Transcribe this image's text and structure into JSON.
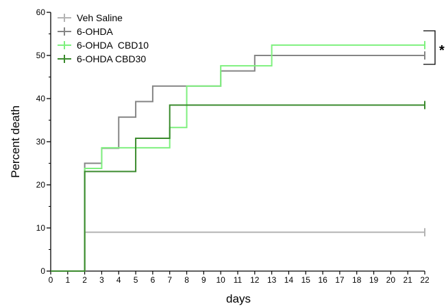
{
  "chart_data": {
    "type": "line",
    "title": "",
    "xlabel": "days",
    "ylabel": "Percent death",
    "xlim": [
      0,
      22
    ],
    "ylim": [
      0,
      60
    ],
    "xticks": [
      0,
      1,
      2,
      3,
      4,
      5,
      6,
      7,
      8,
      9,
      10,
      11,
      12,
      13,
      14,
      15,
      16,
      17,
      18,
      19,
      20,
      21,
      22
    ],
    "yticks": [
      0,
      10,
      20,
      30,
      40,
      50,
      60
    ],
    "grid": false,
    "legend_position": "top-left",
    "step": true,
    "series": [
      {
        "name": "Veh Saline",
        "color": "#b3b3b3",
        "x": [
          0,
          2,
          22
        ],
        "y": [
          0,
          9,
          9
        ]
      },
      {
        "name": "6-OHDA",
        "color": "#858585",
        "x": [
          0,
          2,
          3,
          4,
          5,
          6,
          10,
          12,
          22
        ],
        "y": [
          0,
          25,
          28.5,
          35.7,
          39.3,
          42.9,
          46.4,
          50,
          50
        ]
      },
      {
        "name": "6-OHDA  CBD10",
        "color": "#7ef07e",
        "x": [
          0,
          2,
          3,
          7,
          8,
          10,
          13,
          22
        ],
        "y": [
          0,
          23.8,
          28.6,
          33.3,
          42.9,
          47.6,
          52.4,
          52.4
        ]
      },
      {
        "name": "6-OHDA CBD30",
        "color": "#3a8a2c",
        "x": [
          0,
          2,
          5,
          7,
          22
        ],
        "y": [
          0,
          23.1,
          30.8,
          38.5,
          38.5
        ]
      }
    ],
    "annotations": [
      {
        "text": "*"
      }
    ]
  }
}
